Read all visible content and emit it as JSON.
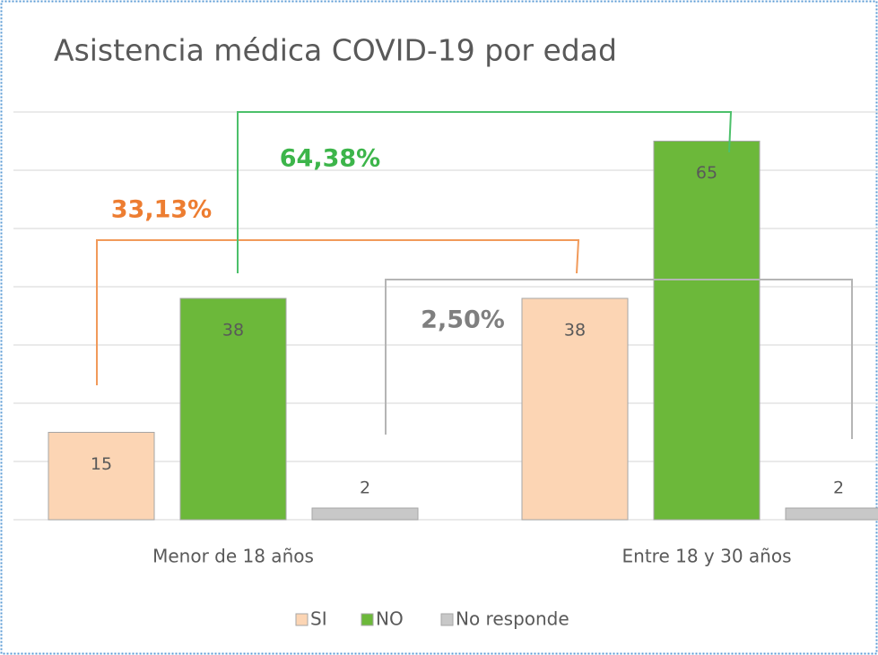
{
  "chart_data": {
    "type": "bar",
    "title": "Asistencia médica COVID-19  por edad",
    "categories": [
      "Menor de 18 años",
      "Entre 18 y 30 años"
    ],
    "series": [
      {
        "name": "SI",
        "color": "#fcd5b4",
        "values": [
          15,
          38
        ]
      },
      {
        "name": "NO",
        "color": "#6cb83a",
        "values": [
          38,
          65
        ]
      },
      {
        "name": "No responde",
        "color": "#c8c8c8",
        "values": [
          2,
          2
        ]
      }
    ],
    "annotations": [
      "64,38%",
      "33,13%",
      "2,50%"
    ],
    "ylim": [
      0,
      70
    ],
    "yticks": [
      0,
      10,
      20,
      30,
      40,
      50,
      60,
      70
    ],
    "grid": true,
    "legend": "bottom"
  }
}
